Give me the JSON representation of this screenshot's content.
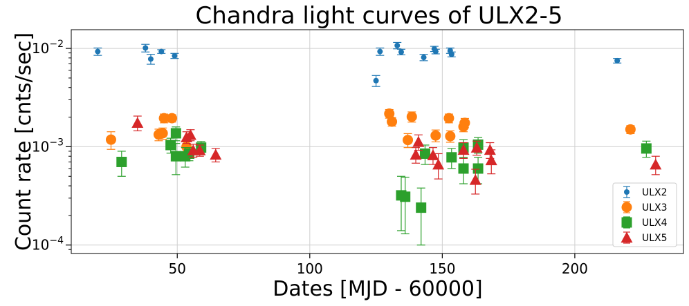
{
  "chart_data": {
    "type": "scatter",
    "title": "Chandra light curves of ULX2-5",
    "xlabel": "Dates [MJD - 60000]",
    "ylabel": "Count rate [cnts/sec]",
    "xlim": [
      10,
      241
    ],
    "ylim": [
      8.2e-05,
      0.0155
    ],
    "yscale": "log",
    "grid": true,
    "legend_position": "lower-right",
    "x_ticks": [
      50,
      100,
      150,
      200
    ],
    "y_ticks": [
      {
        "value": 0.01,
        "label": "10^-2"
      },
      {
        "value": 0.001,
        "label": "10^-3"
      },
      {
        "value": 0.0001,
        "label": "10^-4"
      }
    ],
    "series": [
      {
        "name": "ULX2",
        "color": "#1f77b4",
        "marker": "circle-small",
        "points": [
          {
            "x": 20,
            "y": 0.0093,
            "lo": 0.0085,
            "hi": 0.0101
          },
          {
            "x": 38,
            "y": 0.0101,
            "lo": 0.0092,
            "hi": 0.011
          },
          {
            "x": 40,
            "y": 0.0078,
            "lo": 0.0069,
            "hi": 0.0087
          },
          {
            "x": 44,
            "y": 0.0093,
            "lo": 0.0089,
            "hi": 0.0097
          },
          {
            "x": 49,
            "y": 0.0084,
            "lo": 0.0079,
            "hi": 0.0089
          },
          {
            "x": 125,
            "y": 0.0047,
            "lo": 0.0041,
            "hi": 0.0053
          },
          {
            "x": 126.5,
            "y": 0.0093,
            "lo": 0.0085,
            "hi": 0.0101
          },
          {
            "x": 133,
            "y": 0.0107,
            "lo": 0.0099,
            "hi": 0.0115
          },
          {
            "x": 134.5,
            "y": 0.0092,
            "lo": 0.0086,
            "hi": 0.0098
          },
          {
            "x": 143,
            "y": 0.0081,
            "lo": 0.0075,
            "hi": 0.0087
          },
          {
            "x": 147,
            "y": 0.0099,
            "lo": 0.0093,
            "hi": 0.0105
          },
          {
            "x": 147.5,
            "y": 0.0093,
            "lo": 0.0088,
            "hi": 0.0098
          },
          {
            "x": 153,
            "y": 0.0095,
            "lo": 0.0089,
            "hi": 0.0101
          },
          {
            "x": 153.5,
            "y": 0.0087,
            "lo": 0.0082,
            "hi": 0.0092
          },
          {
            "x": 216,
            "y": 0.0075,
            "lo": 0.0071,
            "hi": 0.0079
          }
        ]
      },
      {
        "name": "ULX3",
        "color": "#ff7f0e",
        "marker": "circle",
        "points": [
          {
            "x": 25,
            "y": 0.00118,
            "lo": 0.00094,
            "hi": 0.00142
          },
          {
            "x": 43,
            "y": 0.00133,
            "lo": 0.00115,
            "hi": 0.00151
          },
          {
            "x": 44.5,
            "y": 0.00137,
            "lo": 0.00119,
            "hi": 0.00155
          },
          {
            "x": 45,
            "y": 0.00195,
            "lo": 0.00175,
            "hi": 0.00215
          },
          {
            "x": 48,
            "y": 0.00195,
            "lo": 0.00178,
            "hi": 0.00212
          },
          {
            "x": 53.5,
            "y": 0.001,
            "lo": 0.00088,
            "hi": 0.00112
          },
          {
            "x": 130,
            "y": 0.00217,
            "lo": 0.00195,
            "hi": 0.00239
          },
          {
            "x": 131,
            "y": 0.0018,
            "lo": 0.00162,
            "hi": 0.00198
          },
          {
            "x": 137,
            "y": 0.00117,
            "lo": 0.00098,
            "hi": 0.00136
          },
          {
            "x": 138.5,
            "y": 0.00202,
            "lo": 0.00178,
            "hi": 0.00226
          },
          {
            "x": 147.5,
            "y": 0.0013,
            "lo": 0.00112,
            "hi": 0.00148
          },
          {
            "x": 152.5,
            "y": 0.00195,
            "lo": 0.00175,
            "hi": 0.00215
          },
          {
            "x": 153,
            "y": 0.00128,
            "lo": 0.00111,
            "hi": 0.00145
          },
          {
            "x": 158,
            "y": 0.0016,
            "lo": 0.00142,
            "hi": 0.00178
          },
          {
            "x": 158.5,
            "y": 0.00175,
            "lo": 0.00156,
            "hi": 0.00194
          },
          {
            "x": 221,
            "y": 0.0015,
            "lo": 0.00136,
            "hi": 0.00164
          }
        ]
      },
      {
        "name": "ULX4",
        "color": "#2ca02c",
        "marker": "square",
        "points": [
          {
            "x": 29,
            "y": 0.0007,
            "lo": 0.0005,
            "hi": 0.0009
          },
          {
            "x": 47.5,
            "y": 0.00104,
            "lo": 0.00086,
            "hi": 0.00122
          },
          {
            "x": 49.5,
            "y": 0.00137,
            "lo": 0.00115,
            "hi": 0.00159
          },
          {
            "x": 49.5,
            "y": 0.0008,
            "lo": 0.00052,
            "hi": 0.00108
          },
          {
            "x": 53,
            "y": 0.0008,
            "lo": 0.00062,
            "hi": 0.00098
          },
          {
            "x": 54.5,
            "y": 0.00085,
            "lo": 0.00072,
            "hi": 0.00098
          },
          {
            "x": 59,
            "y": 0.00098,
            "lo": 0.00083,
            "hi": 0.00113
          },
          {
            "x": 134.5,
            "y": 0.00032,
            "lo": 0.00014,
            "hi": 0.0005
          },
          {
            "x": 136,
            "y": 0.00031,
            "lo": 0.00013,
            "hi": 0.00049
          },
          {
            "x": 142,
            "y": 0.00024,
            "lo": 0.0001,
            "hi": 0.00038
          },
          {
            "x": 143.5,
            "y": 0.00085,
            "lo": 0.00066,
            "hi": 0.00104
          },
          {
            "x": 153.5,
            "y": 0.00078,
            "lo": 0.0006,
            "hi": 0.00096
          },
          {
            "x": 158,
            "y": 0.00098,
            "lo": 0.00078,
            "hi": 0.00118
          },
          {
            "x": 158,
            "y": 0.0006,
            "lo": 0.00042,
            "hi": 0.00078
          },
          {
            "x": 163.5,
            "y": 0.00105,
            "lo": 0.00086,
            "hi": 0.00124
          },
          {
            "x": 163.5,
            "y": 0.0006,
            "lo": 0.00042,
            "hi": 0.00078
          },
          {
            "x": 227,
            "y": 0.00096,
            "lo": 0.00078,
            "hi": 0.00114
          }
        ]
      },
      {
        "name": "ULX5",
        "color": "#d62728",
        "marker": "triangle",
        "points": [
          {
            "x": 35,
            "y": 0.00175,
            "lo": 0.00145,
            "hi": 0.00205
          },
          {
            "x": 53.5,
            "y": 0.00125,
            "lo": 0.00108,
            "hi": 0.00142
          },
          {
            "x": 55,
            "y": 0.00132,
            "lo": 0.00115,
            "hi": 0.00149
          },
          {
            "x": 56,
            "y": 0.00092,
            "lo": 0.00078,
            "hi": 0.00106
          },
          {
            "x": 58.5,
            "y": 0.00092,
            "lo": 0.0008,
            "hi": 0.00104
          },
          {
            "x": 64.5,
            "y": 0.00083,
            "lo": 0.0007,
            "hi": 0.00096
          },
          {
            "x": 140,
            "y": 0.00083,
            "lo": 0.00068,
            "hi": 0.00098
          },
          {
            "x": 141,
            "y": 0.00112,
            "lo": 0.00092,
            "hi": 0.00132
          },
          {
            "x": 146.5,
            "y": 0.00082,
            "lo": 0.00066,
            "hi": 0.00098
          },
          {
            "x": 148.5,
            "y": 0.00066,
            "lo": 0.00047,
            "hi": 0.00085
          },
          {
            "x": 158,
            "y": 0.00093,
            "lo": 0.00076,
            "hi": 0.0011
          },
          {
            "x": 162.5,
            "y": 0.00046,
            "lo": 0.00033,
            "hi": 0.00059
          },
          {
            "x": 163,
            "y": 0.00098,
            "lo": 0.00082,
            "hi": 0.00114
          },
          {
            "x": 168,
            "y": 0.00093,
            "lo": 0.00076,
            "hi": 0.0011
          },
          {
            "x": 168.5,
            "y": 0.00073,
            "lo": 0.00053,
            "hi": 0.00093
          },
          {
            "x": 230.5,
            "y": 0.00066,
            "lo": 0.00052,
            "hi": 0.0008
          }
        ]
      }
    ]
  }
}
